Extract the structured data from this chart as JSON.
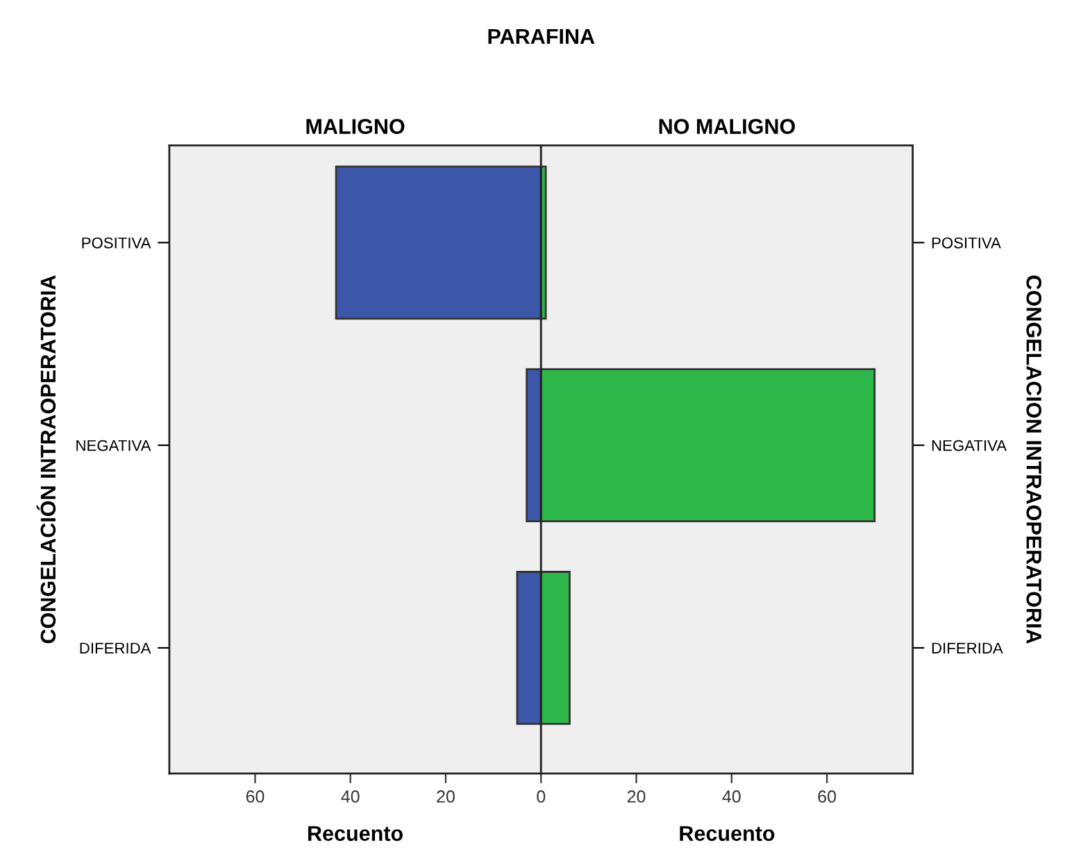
{
  "chart_data": [
    {
      "type": "bar",
      "orientation": "horizontal",
      "title": "MALIGNO",
      "xlabel": "Recuento",
      "ylabel": "CONGELACIÓN INTRAOPERATORIA",
      "annotations": [
        "PARAFINA"
      ],
      "categories": [
        "POSITIVA",
        "NEGATIVA",
        "DIFERIDA"
      ],
      "values": [
        43,
        3,
        5
      ],
      "color": "#3c56a8",
      "xlim": [
        78,
        0
      ],
      "xticks": [
        60,
        40,
        20
      ],
      "grid": false,
      "legend": false
    },
    {
      "type": "bar",
      "orientation": "horizontal",
      "title": "NO MALIGNO",
      "xlabel": "Recuento",
      "ylabel": "CONGELACION INTRAOPERATORIA",
      "categories": [
        "POSITIVA",
        "NEGATIVA",
        "DIFERIDA"
      ],
      "values": [
        1,
        70,
        6
      ],
      "color": "#2fb84a",
      "xlim": [
        0,
        78
      ],
      "xticks": [
        0,
        20,
        40,
        60
      ],
      "grid": false,
      "legend": false
    }
  ]
}
